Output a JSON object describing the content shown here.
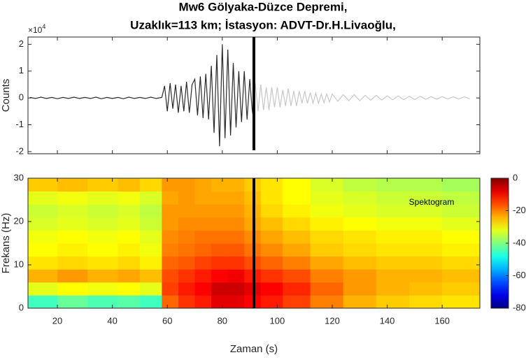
{
  "chart_data": [
    {
      "type": "line",
      "title": "Mw6 Gölyaka-Düzce Depremi,",
      "subtitle": "Uzaklık=113 km; İstasyon: ADVT-Dr.H.Livaoğlu,",
      "y_label": "Counts",
      "y_scale_label": "×10",
      "y_scale_exponent": "4",
      "xlim": [
        9.3,
        173.7
      ],
      "ylim": [
        -2.08,
        2.27
      ],
      "xticks": [
        20,
        40,
        60,
        80,
        100,
        120,
        140,
        160
      ],
      "yticks": [
        -2,
        -1,
        0,
        1,
        2
      ],
      "marker_x": 91.5,
      "series": [
        {
          "color": "#2b2b2b",
          "x": [
            10,
            12,
            14,
            16,
            18,
            20,
            22,
            24,
            26,
            28,
            30,
            32,
            34,
            36,
            38,
            40,
            42,
            44,
            46,
            48,
            50,
            52,
            54,
            56,
            58,
            59,
            60,
            61,
            62,
            63,
            64,
            65,
            66,
            67,
            68,
            69,
            70,
            71,
            72,
            73,
            74,
            75,
            76,
            77,
            78,
            79,
            80,
            81,
            82,
            83,
            84,
            85,
            86,
            87,
            88,
            89,
            90,
            91
          ],
          "values": [
            0.02,
            -0.02,
            0.03,
            -0.02,
            0.02,
            -0.03,
            0.02,
            -0.02,
            0.03,
            -0.02,
            0.02,
            -0.02,
            0.03,
            -0.03,
            0.02,
            -0.02,
            0.02,
            -0.03,
            0.03,
            -0.02,
            0.02,
            -0.02,
            0.03,
            -0.02,
            0.02,
            0.45,
            -0.5,
            0.55,
            -0.4,
            0.5,
            -0.55,
            0.45,
            -0.5,
            0.6,
            -0.55,
            0.5,
            0.7,
            -0.65,
            0.8,
            -0.75,
            0.9,
            -0.8,
            1.2,
            -1.3,
            1.6,
            -1.8,
            2.0,
            -1.5,
            1.8,
            -1.4,
            1.3,
            -1.1,
            1.0,
            -0.9,
            1.0,
            -0.8,
            0.7,
            -0.6
          ]
        },
        {
          "color": "#c8c8c8",
          "x": [
            91,
            92,
            93,
            94,
            95,
            96,
            97,
            98,
            99,
            100,
            101,
            102,
            103,
            104,
            105,
            106,
            107,
            108,
            109,
            110,
            111,
            112,
            113,
            114,
            115,
            116,
            117,
            118,
            119,
            120,
            122,
            124,
            126,
            128,
            130,
            132,
            134,
            136,
            138,
            140,
            142,
            144,
            146,
            148,
            150,
            152,
            154,
            156,
            158,
            160,
            162,
            164,
            166,
            168,
            170
          ],
          "values": [
            -0.6,
            0.55,
            -0.5,
            0.5,
            -0.45,
            0.4,
            -0.45,
            0.4,
            -0.35,
            0.4,
            -0.35,
            0.3,
            -0.3,
            0.35,
            -0.3,
            0.25,
            -0.3,
            0.25,
            -0.2,
            0.25,
            -0.2,
            0.2,
            -0.2,
            0.18,
            -0.2,
            0.15,
            -0.18,
            0.15,
            -0.15,
            0.15,
            -0.12,
            0.12,
            -0.1,
            0.12,
            -0.1,
            0.1,
            -0.09,
            0.1,
            -0.08,
            0.08,
            -0.07,
            0.08,
            -0.07,
            0.06,
            -0.06,
            0.06,
            -0.05,
            0.05,
            -0.05,
            0.05,
            -0.04,
            0.04,
            -0.04,
            0.04,
            -0.03
          ]
        }
      ]
    },
    {
      "type": "heatmap",
      "x_label": "Zaman (s)",
      "y_label": "Frekans (Hz)",
      "annotation": "Spektogram",
      "xlim": [
        9.3,
        173.7
      ],
      "ylim": [
        0,
        30
      ],
      "xticks": [
        20,
        40,
        60,
        80,
        100,
        120,
        140,
        160
      ],
      "yticks": [
        0,
        10,
        20,
        30
      ],
      "marker_x": 91.5,
      "colormap": "jet",
      "clim": [
        -80,
        0
      ],
      "cticks": [
        0,
        -20,
        -40,
        -60,
        -80
      ],
      "x_bins": [
        9.3,
        20,
        31,
        42,
        50,
        58,
        64,
        70,
        76,
        82,
        88,
        94,
        102,
        112,
        124,
        136,
        148,
        160,
        173.7
      ],
      "y_bins": [
        0,
        3,
        6,
        9,
        12,
        15,
        18,
        21,
        24,
        27,
        30
      ],
      "values": [
        [
          -45,
          -42,
          -44,
          -43,
          -45,
          -18,
          -14,
          -12,
          -8,
          -8,
          -10,
          -12,
          -15,
          -20,
          -24,
          -26,
          -27,
          -28
        ],
        [
          -32,
          -30,
          -31,
          -30,
          -32,
          -15,
          -12,
          -10,
          -6,
          -6,
          -8,
          -10,
          -13,
          -18,
          -22,
          -24,
          -25,
          -26
        ],
        [
          -24,
          -22,
          -24,
          -23,
          -25,
          -16,
          -14,
          -12,
          -10,
          -9,
          -12,
          -14,
          -16,
          -20,
          -22,
          -24,
          -24,
          -25
        ],
        [
          -28,
          -27,
          -28,
          -27,
          -29,
          -18,
          -17,
          -15,
          -14,
          -14,
          -16,
          -18,
          -20,
          -23,
          -25,
          -26,
          -26,
          -27
        ],
        [
          -30,
          -29,
          -30,
          -29,
          -31,
          -20,
          -19,
          -18,
          -17,
          -17,
          -19,
          -21,
          -23,
          -26,
          -27,
          -28,
          -28,
          -29
        ],
        [
          -31,
          -30,
          -31,
          -30,
          -32,
          -21,
          -20,
          -19,
          -19,
          -19,
          -21,
          -23,
          -25,
          -27,
          -28,
          -29,
          -29,
          -30
        ],
        [
          -33,
          -32,
          -33,
          -32,
          -34,
          -22,
          -21,
          -21,
          -21,
          -21,
          -23,
          -25,
          -27,
          -29,
          -30,
          -31,
          -31,
          -32
        ],
        [
          -34,
          -33,
          -34,
          -33,
          -35,
          -22,
          -22,
          -22,
          -22,
          -22,
          -24,
          -27,
          -29,
          -31,
          -32,
          -33,
          -33,
          -34
        ],
        [
          -32,
          -31,
          -32,
          -31,
          -33,
          -23,
          -22,
          -23,
          -23,
          -23,
          -25,
          -28,
          -30,
          -32,
          -33,
          -34,
          -34,
          -35
        ],
        [
          -26,
          -25,
          -26,
          -25,
          -27,
          -22,
          -22,
          -23,
          -24,
          -24,
          -26,
          -28,
          -30,
          -33,
          -35,
          -36,
          -36,
          -37
        ]
      ]
    }
  ]
}
